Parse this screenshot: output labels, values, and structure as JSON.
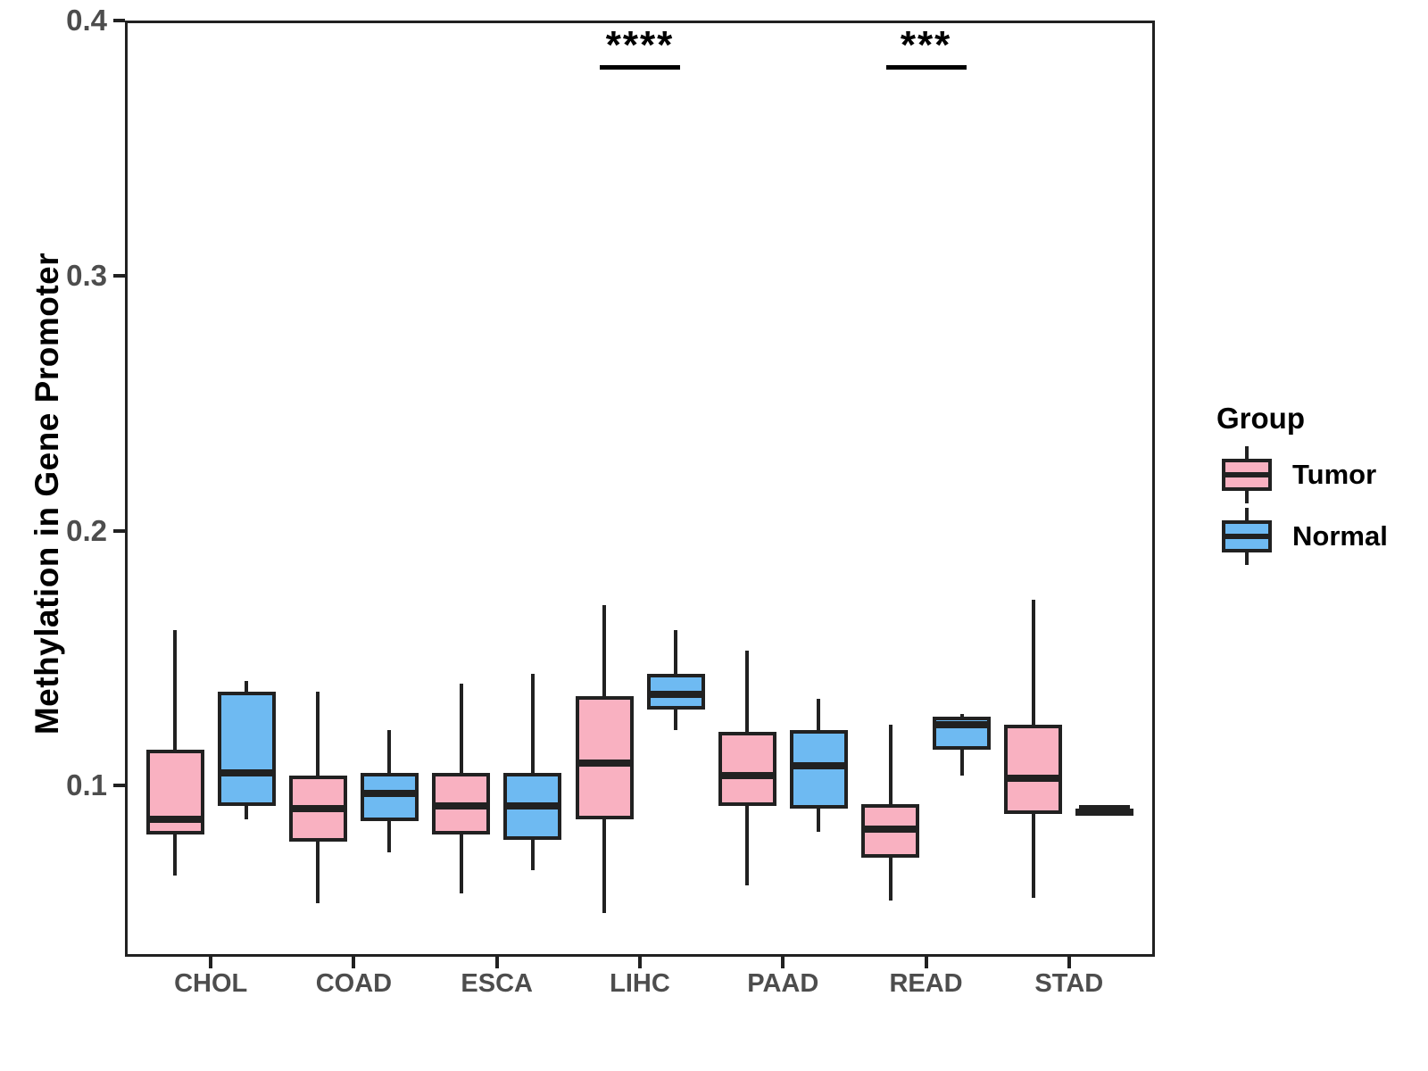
{
  "figure": {
    "background": "#FFFFFF"
  },
  "legend": {
    "title": "Group"
  },
  "y_axis": {
    "ticks": [
      {
        "value": 0.4,
        "label": "0.4"
      },
      {
        "value": 0.3,
        "label": "0.3"
      },
      {
        "value": 0.2,
        "label": "0.2"
      },
      {
        "value": 0.1,
        "label": "0.1"
      }
    ]
  },
  "chart_data": {
    "type": "grouped_boxplot",
    "title": "",
    "xlabel": "",
    "ylabel": "Methylation in Gene Promoter",
    "ylim": [
      0.033,
      0.4
    ],
    "yticks": [
      0.1,
      0.2,
      0.3,
      0.4
    ],
    "grid": false,
    "legend_position": "right",
    "categories": [
      "CHOL",
      "COAD",
      "ESCA",
      "LIHC",
      "PAAD",
      "READ",
      "STAD"
    ],
    "groups": [
      {
        "name": "Tumor",
        "color": "#F9B1C1"
      },
      {
        "name": "Normal",
        "color": "#6EBAF2"
      }
    ],
    "line_color": "#212121",
    "tick_label_color": "#4D4D4D",
    "boxes": [
      {
        "category": "CHOL",
        "group": "Tumor",
        "whisker_low": 0.065,
        "q1": 0.081,
        "median": 0.087,
        "q3": 0.114,
        "whisker_high": 0.161
      },
      {
        "category": "CHOL",
        "group": "Normal",
        "whisker_low": 0.087,
        "q1": 0.092,
        "median": 0.105,
        "q3": 0.137,
        "whisker_high": 0.141
      },
      {
        "category": "COAD",
        "group": "Tumor",
        "whisker_low": 0.054,
        "q1": 0.078,
        "median": 0.091,
        "q3": 0.104,
        "whisker_high": 0.137
      },
      {
        "category": "COAD",
        "group": "Normal",
        "whisker_low": 0.074,
        "q1": 0.086,
        "median": 0.097,
        "q3": 0.105,
        "whisker_high": 0.122
      },
      {
        "category": "ESCA",
        "group": "Tumor",
        "whisker_low": 0.058,
        "q1": 0.081,
        "median": 0.092,
        "q3": 0.105,
        "whisker_high": 0.14
      },
      {
        "category": "ESCA",
        "group": "Normal",
        "whisker_low": 0.067,
        "q1": 0.079,
        "median": 0.092,
        "q3": 0.105,
        "whisker_high": 0.144
      },
      {
        "category": "LIHC",
        "group": "Tumor",
        "whisker_low": 0.05,
        "q1": 0.087,
        "median": 0.109,
        "q3": 0.135,
        "whisker_high": 0.171
      },
      {
        "category": "LIHC",
        "group": "Normal",
        "whisker_low": 0.122,
        "q1": 0.13,
        "median": 0.136,
        "q3": 0.144,
        "whisker_high": 0.161
      },
      {
        "category": "PAAD",
        "group": "Tumor",
        "whisker_low": 0.061,
        "q1": 0.092,
        "median": 0.104,
        "q3": 0.121,
        "whisker_high": 0.153
      },
      {
        "category": "PAAD",
        "group": "Normal",
        "whisker_low": 0.082,
        "q1": 0.091,
        "median": 0.108,
        "q3": 0.122,
        "whisker_high": 0.134
      },
      {
        "category": "READ",
        "group": "Tumor",
        "whisker_low": 0.055,
        "q1": 0.072,
        "median": 0.083,
        "q3": 0.093,
        "whisker_high": 0.124
      },
      {
        "category": "READ",
        "group": "Normal",
        "whisker_low": 0.104,
        "q1": 0.114,
        "median": 0.124,
        "q3": 0.127,
        "whisker_high": 0.128
      },
      {
        "category": "STAD",
        "group": "Tumor",
        "whisker_low": 0.056,
        "q1": 0.089,
        "median": 0.103,
        "q3": 0.124,
        "whisker_high": 0.173
      },
      {
        "category": "STAD",
        "group": "Normal",
        "whisker_low": 0.091,
        "q1": 0.091,
        "median": 0.091,
        "q3": 0.091,
        "whisker_high": 0.091
      }
    ],
    "significance": [
      {
        "category": "LIHC",
        "label": "****"
      },
      {
        "category": "READ",
        "label": "***"
      }
    ]
  }
}
